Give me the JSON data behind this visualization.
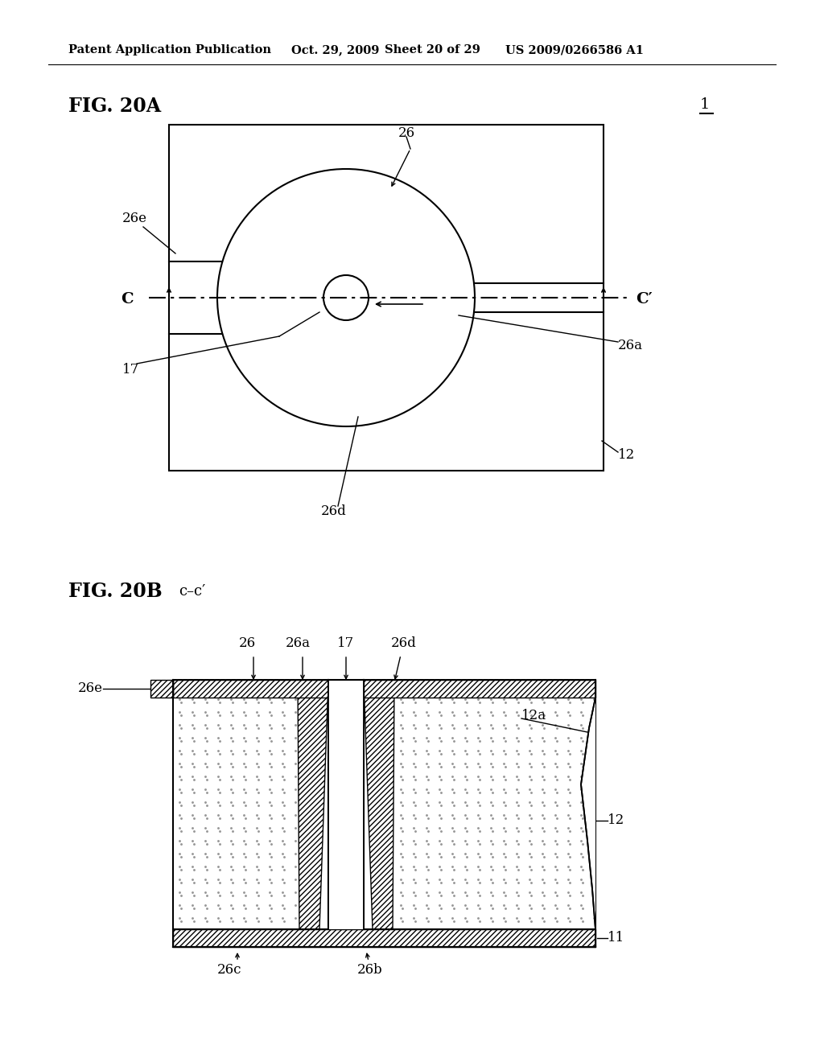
{
  "bg_color": "#ffffff",
  "header_text": "Patent Application Publication",
  "header_date": "Oct. 29, 2009",
  "header_sheet": "Sheet 20 of 29",
  "header_patent": "US 2009/0266586 A1",
  "fig20a_label": "FIG. 20A",
  "fig20b_label": "FIG. 20B",
  "fig20b_section": "c–c′",
  "label_1": "1",
  "label_26": "26",
  "label_26a": "26a",
  "label_26d": "26d",
  "label_26e": "26e",
  "label_17": "17",
  "label_12": "12",
  "label_C": "C",
  "label_Cprime": "C′",
  "label_26c": "26c",
  "label_26b": "26b",
  "label_12a": "12a",
  "label_11": "11"
}
